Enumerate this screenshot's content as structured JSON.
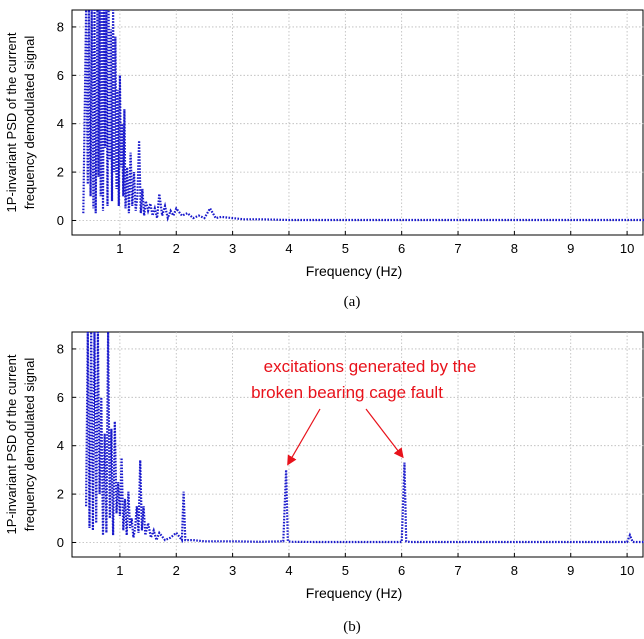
{
  "chart_data": [
    {
      "type": "line",
      "caption": "(a)",
      "xlabel": "Frequency (Hz)",
      "ylabel_line1": "1P-invariant PSD of the current",
      "ylabel_line2": "frequency demodulated signal",
      "xlim": [
        0.15,
        10.3
      ],
      "ylim": [
        -0.6,
        8.7
      ],
      "xticks": [
        1,
        2,
        3,
        4,
        5,
        6,
        7,
        8,
        9,
        10
      ],
      "yticks": [
        0,
        2,
        4,
        6,
        8
      ],
      "grid": true,
      "line_style": "dotted",
      "color": "#1a1acc",
      "series": [
        {
          "x": [
            0.35,
            0.4,
            0.43,
            0.45,
            0.48,
            0.5,
            0.53,
            0.55,
            0.57,
            0.6,
            0.62,
            0.64,
            0.66,
            0.68,
            0.7,
            0.72,
            0.74,
            0.76,
            0.78,
            0.8,
            0.82,
            0.84,
            0.86,
            0.88,
            0.9,
            0.92,
            0.94,
            0.96,
            0.98,
            1.0,
            1.02,
            1.04,
            1.06,
            1.08,
            1.1,
            1.13,
            1.16,
            1.19,
            1.22,
            1.25,
            1.28,
            1.31,
            1.34,
            1.37,
            1.4,
            1.43,
            1.46,
            1.5,
            1.54,
            1.58,
            1.62,
            1.66,
            1.7,
            1.75,
            1.8,
            1.85,
            1.9,
            1.95,
            2.0,
            2.1,
            2.2,
            2.3,
            2.4,
            2.5,
            2.6,
            2.7,
            2.8,
            3.0,
            3.2,
            3.5,
            4.0,
            4.5,
            5.0,
            5.5,
            6.0,
            6.5,
            7.0,
            7.5,
            8.0,
            8.5,
            9.0,
            9.5,
            10.0,
            10.3
          ],
          "y": [
            0.3,
            8.7,
            1.5,
            8.7,
            1.0,
            8.7,
            0.5,
            8.7,
            0.3,
            8.7,
            1.8,
            8.7,
            1.0,
            8.7,
            0.4,
            8.7,
            3.0,
            8.7,
            0.6,
            8.7,
            2.5,
            7.9,
            0.8,
            8.7,
            2.0,
            7.6,
            1.3,
            5.4,
            0.6,
            6.0,
            2.2,
            4.0,
            1.0,
            4.6,
            0.5,
            2.2,
            0.3,
            2.8,
            0.6,
            2.0,
            0.4,
            1.0,
            3.3,
            0.3,
            1.3,
            0.2,
            0.8,
            0.4,
            0.7,
            0.2,
            0.5,
            0.1,
            1.1,
            0.2,
            0.6,
            0.1,
            0.4,
            0.2,
            0.5,
            0.2,
            0.3,
            0.1,
            0.2,
            0.1,
            0.5,
            0.1,
            0.15,
            0.1,
            0.05,
            0.05,
            0.02,
            0.02,
            0.02,
            0.02,
            0.02,
            0.02,
            0.02,
            0.02,
            0.02,
            0.02,
            0.02,
            0.02,
            0.02,
            0.02
          ]
        }
      ]
    },
    {
      "type": "line",
      "caption": "(b)",
      "xlabel": "Frequency (Hz)",
      "ylabel_line1": "1P-invariant PSD of the current",
      "ylabel_line2": "frequency demodulated signal",
      "xlim": [
        0.15,
        10.3
      ],
      "ylim": [
        -0.6,
        8.7
      ],
      "xticks": [
        1,
        2,
        3,
        4,
        5,
        6,
        7,
        8,
        9,
        10
      ],
      "yticks": [
        0,
        2,
        4,
        6,
        8
      ],
      "grid": true,
      "line_style": "dotted",
      "color": "#1a1acc",
      "annotation": {
        "line1": "excitations generated by the",
        "line2": "broken bearing cage fault",
        "color": "#e8121b",
        "targets": [
          {
            "x": 3.95,
            "y": 3.0
          },
          {
            "x": 6.05,
            "y": 3.3
          }
        ]
      },
      "series": [
        {
          "x": [
            0.4,
            0.43,
            0.46,
            0.49,
            0.52,
            0.55,
            0.58,
            0.61,
            0.64,
            0.67,
            0.7,
            0.73,
            0.76,
            0.79,
            0.82,
            0.85,
            0.88,
            0.91,
            0.94,
            0.97,
            1.0,
            1.03,
            1.06,
            1.09,
            1.12,
            1.15,
            1.18,
            1.21,
            1.24,
            1.27,
            1.3,
            1.33,
            1.36,
            1.39,
            1.42,
            1.45,
            1.5,
            1.55,
            1.6,
            1.65,
            1.7,
            1.8,
            1.9,
            2.0,
            2.1,
            2.13,
            2.16,
            2.3,
            2.5,
            2.8,
            3.0,
            3.5,
            3.9,
            3.95,
            3.98,
            4.05,
            4.5,
            5.0,
            5.5,
            6.0,
            6.05,
            6.08,
            6.15,
            7.0,
            8.0,
            9.0,
            10.0,
            10.05,
            10.1,
            10.3
          ],
          "y": [
            1.5,
            8.7,
            0.6,
            8.7,
            0.5,
            8.7,
            0.8,
            8.7,
            2.0,
            6.0,
            0.3,
            4.5,
            0.4,
            8.7,
            1.0,
            4.7,
            0.3,
            5.0,
            1.2,
            2.5,
            1.1,
            3.5,
            0.5,
            1.8,
            0.3,
            2.1,
            0.6,
            1.0,
            0.2,
            0.6,
            1.5,
            0.4,
            3.4,
            0.5,
            1.5,
            0.3,
            0.8,
            0.2,
            0.5,
            0.1,
            0.4,
            0.1,
            0.2,
            0.4,
            0.1,
            2.1,
            0.1,
            0.1,
            0.05,
            0.05,
            0.05,
            0.03,
            0.05,
            3.0,
            0.05,
            0.03,
            0.02,
            0.02,
            0.02,
            0.02,
            3.3,
            0.05,
            0.02,
            0.02,
            0.02,
            0.02,
            0.02,
            0.3,
            0.02,
            0.02
          ]
        }
      ]
    }
  ]
}
